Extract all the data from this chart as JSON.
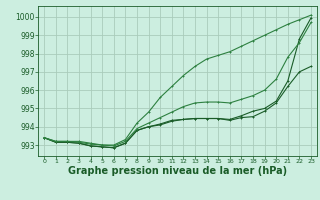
{
  "background_color": "#cceee0",
  "grid_color": "#aaccbb",
  "line_color_dark": "#1a5c28",
  "line_color_light": "#2d8040",
  "xlabel": "Graphe pression niveau de la mer (hPa)",
  "xlabel_fontsize": 7,
  "ylim": [
    992.4,
    1000.6
  ],
  "xlim": [
    -0.5,
    23.5
  ],
  "yticks": [
    993,
    994,
    995,
    996,
    997,
    998,
    999,
    1000
  ],
  "xticks": [
    0,
    1,
    2,
    3,
    4,
    5,
    6,
    7,
    8,
    9,
    10,
    11,
    12,
    13,
    14,
    15,
    16,
    17,
    18,
    19,
    20,
    21,
    22,
    23
  ],
  "series_top": [
    993.4,
    993.2,
    993.2,
    993.2,
    993.1,
    993.0,
    993.0,
    993.3,
    994.2,
    994.8,
    995.6,
    996.2,
    996.8,
    997.3,
    997.7,
    997.9,
    998.1,
    998.4,
    998.7,
    999.0,
    999.3,
    999.6,
    999.85,
    1000.1
  ],
  "series_mid1": [
    993.4,
    993.2,
    993.2,
    993.15,
    993.05,
    993.0,
    992.95,
    993.2,
    993.9,
    994.2,
    994.5,
    994.8,
    995.1,
    995.3,
    995.35,
    995.35,
    995.3,
    995.5,
    995.7,
    996.0,
    996.6,
    997.8,
    998.6,
    999.7
  ],
  "series_mid2": [
    993.4,
    993.15,
    993.15,
    993.1,
    992.95,
    992.9,
    992.85,
    993.1,
    993.8,
    994.0,
    994.15,
    994.35,
    994.4,
    994.45,
    994.45,
    994.45,
    994.4,
    994.6,
    994.85,
    995.0,
    995.4,
    996.5,
    998.8,
    999.95
  ],
  "series_bot": [
    993.4,
    993.15,
    993.15,
    993.1,
    992.95,
    992.9,
    992.85,
    993.1,
    993.8,
    994.0,
    994.1,
    994.3,
    994.4,
    994.45,
    994.45,
    994.45,
    994.35,
    994.5,
    994.55,
    994.85,
    995.3,
    996.2,
    997.0,
    997.3
  ]
}
